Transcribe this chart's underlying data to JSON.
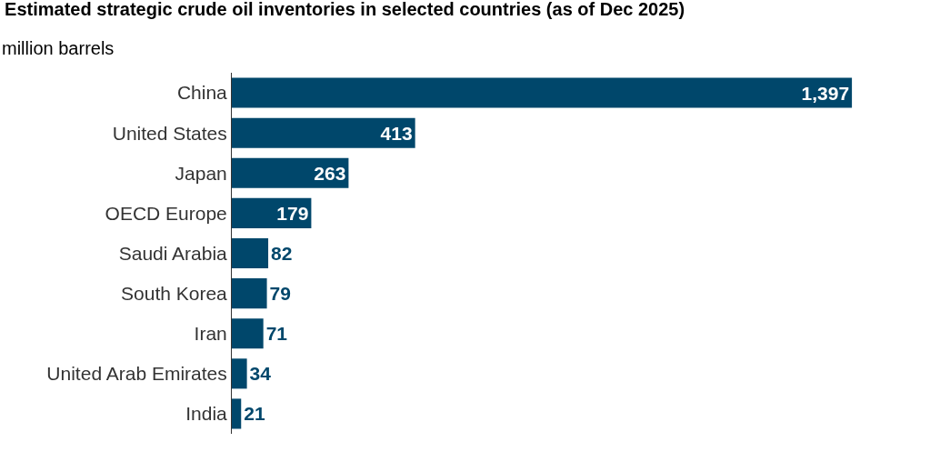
{
  "chart_data": {
    "type": "bar",
    "orientation": "horizontal",
    "title": "Estimated strategic crude oil inventories in selected countries (as of Dec 2025)",
    "subtitle": "million barrels",
    "categories": [
      "China",
      "United States",
      "Japan",
      "OECD Europe",
      "Saudi Arabia",
      "South Korea",
      "Iran",
      "United Arab Emirates",
      "India"
    ],
    "values": [
      1397,
      413,
      263,
      179,
      82,
      79,
      71,
      34,
      21
    ],
    "value_labels": [
      "1,397",
      "413",
      "263",
      "179",
      "82",
      "79",
      "71",
      "34",
      "21"
    ],
    "color": "#00476b",
    "legend": false,
    "tick_labels": "y"
  }
}
